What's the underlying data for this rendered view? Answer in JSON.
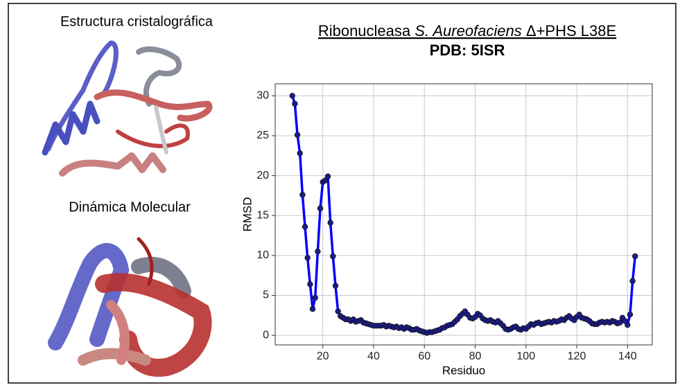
{
  "panels": {
    "top_label": "Estructura cristalográfica",
    "bottom_label": "Dinámica Molecular"
  },
  "chart_data": {
    "type": "line",
    "title": [
      "Ribonucleasa ",
      "S. Aureofaciens",
      " Δ+PHS L38E"
    ],
    "subtitle": "PDB: 5ISR",
    "x_label": "Residuo",
    "y_label": "RMSD",
    "color": "#0000ff",
    "marker_color": "#1c1c8a",
    "xlim": [
      1.25,
      149.75
    ],
    "ylim": [
      -1.2,
      31.5
    ],
    "xticks": [
      20,
      40,
      60,
      80,
      100,
      120,
      140
    ],
    "yticks": [
      0,
      5,
      10,
      15,
      20,
      25,
      30
    ],
    "grid": true,
    "x": [
      8,
      9,
      10,
      11,
      12,
      13,
      14,
      15,
      16,
      17,
      18,
      19,
      20,
      21,
      22,
      23,
      24,
      25,
      26,
      27,
      28,
      29,
      30,
      31,
      32,
      33,
      34,
      35,
      36,
      37,
      38,
      39,
      40,
      41,
      42,
      43,
      44,
      45,
      46,
      47,
      48,
      49,
      50,
      51,
      52,
      53,
      54,
      55,
      56,
      57,
      58,
      59,
      60,
      61,
      62,
      63,
      64,
      65,
      66,
      67,
      68,
      69,
      70,
      71,
      72,
      73,
      74,
      75,
      76,
      77,
      78,
      79,
      80,
      81,
      82,
      83,
      84,
      85,
      86,
      87,
      88,
      89,
      90,
      91,
      92,
      93,
      94,
      95,
      96,
      97,
      98,
      99,
      100,
      101,
      102,
      103,
      104,
      105,
      106,
      107,
      108,
      109,
      110,
      111,
      112,
      113,
      114,
      115,
      116,
      117,
      118,
      119,
      120,
      121,
      122,
      123,
      124,
      125,
      126,
      127,
      128,
      129,
      130,
      131,
      132,
      133,
      134,
      135,
      136,
      137,
      138,
      139,
      140,
      141,
      142,
      143
    ],
    "values": [
      30,
      29,
      25.1,
      22.8,
      17.6,
      13.6,
      9.7,
      6.4,
      3.3,
      4.7,
      10.5,
      15.9,
      19.2,
      19.4,
      19.9,
      14.1,
      9.9,
      6.2,
      3.0,
      2.4,
      2.2,
      2.0,
      2.0,
      1.8,
      2.0,
      1.7,
      1.8,
      1.9,
      1.6,
      1.5,
      1.4,
      1.3,
      1.2,
      1.2,
      1.2,
      1.2,
      1.3,
      1.1,
      1.2,
      1.1,
      1.0,
      1.1,
      0.9,
      1.0,
      0.8,
      1.0,
      0.9,
      0.7,
      0.7,
      0.8,
      0.6,
      0.5,
      0.4,
      0.3,
      0.4,
      0.4,
      0.5,
      0.6,
      0.7,
      0.9,
      1.0,
      1.2,
      1.3,
      1.4,
      1.7,
      2.0,
      2.4,
      2.7,
      3.0,
      2.6,
      2.2,
      2.1,
      2.3,
      2.7,
      2.5,
      2.1,
      1.9,
      1.8,
      1.9,
      1.7,
      1.6,
      1.8,
      1.5,
      1.2,
      0.8,
      0.7,
      0.8,
      1.0,
      1.1,
      0.8,
      0.7,
      0.9,
      0.8,
      1.1,
      1.4,
      1.3,
      1.5,
      1.6,
      1.4,
      1.5,
      1.6,
      1.7,
      1.6,
      1.8,
      1.7,
      1.8,
      2.0,
      1.9,
      2.2,
      2.4,
      2.1,
      1.9,
      2.3,
      2.6,
      2.2,
      2.1,
      2.0,
      1.8,
      1.5,
      1.4,
      1.4,
      1.6,
      1.7,
      1.6,
      1.7,
      1.6,
      1.8,
      1.7,
      1.5,
      1.6,
      2.2,
      1.8,
      1.3,
      2.6,
      6.8,
      9.9
    ]
  }
}
